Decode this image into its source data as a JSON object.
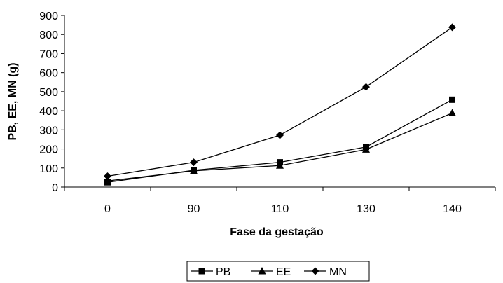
{
  "chart_data": {
    "type": "line",
    "title": "",
    "xlabel": "Fase da gestação",
    "ylabel": "PB, EE, MN (g)",
    "categories": [
      "0",
      "90",
      "110",
      "130",
      "140"
    ],
    "ylim": [
      0,
      900
    ],
    "yticks": [
      0,
      100,
      200,
      300,
      400,
      500,
      600,
      700,
      800,
      900
    ],
    "grid": false,
    "legend_position": "bottom",
    "series": [
      {
        "name": "PB",
        "marker": "square",
        "color": "#000000",
        "values": [
          25,
          88,
          130,
          210,
          458
        ]
      },
      {
        "name": "EE",
        "marker": "triangle",
        "color": "#000000",
        "values": [
          32,
          85,
          113,
          197,
          388
        ]
      },
      {
        "name": "MN",
        "marker": "diamond",
        "color": "#000000",
        "values": [
          57,
          130,
          272,
          525,
          838
        ]
      }
    ]
  }
}
